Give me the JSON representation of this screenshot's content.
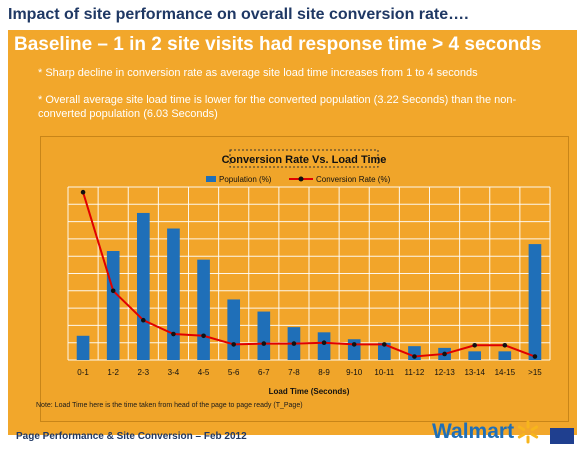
{
  "page": {
    "title": "Impact of site performance on overall site conversion rate….",
    "headline": "Baseline – 1 in 2 site visits had response time > 4 seconds",
    "bullets": [
      "* Sharp decline in conversion rate as average site load time increases from 1 to 4 seconds",
      "* Overall average site load time is lower for the converted population (3.22 Seconds) than the non-converted population (6.03 Seconds)"
    ],
    "note": "Note: Load Time here is the time taken from head of the page to page ready (T_Page)",
    "footer": "Page Performance & Site Conversion – Feb 2012",
    "logo": {
      "text": "Walmart",
      "icon": "spark-icon"
    }
  },
  "colors": {
    "orange": "#f2a72b",
    "blue": "#1f6fb8",
    "red": "#e00000",
    "navy": "#1f3864"
  },
  "chart_data": {
    "type": "bar",
    "title": "Conversion Rate Vs. Load Time",
    "xlabel": "Load Time (Seconds)",
    "ylabel": "",
    "categories": [
      "0-1",
      "1-2",
      "2-3",
      "3-4",
      "4-5",
      "5-6",
      "6-7",
      "7-8",
      "8-9",
      "9-10",
      "10-11",
      "11-12",
      "12-13",
      "13-14",
      "14-15",
      ">15"
    ],
    "ylim": [
      0,
      100
    ],
    "grid": true,
    "legend": "top-center",
    "series": [
      {
        "name": "Population (%)",
        "type": "bar",
        "color": "#1f6fb8",
        "values": [
          14,
          63,
          85,
          76,
          58,
          35,
          28,
          19,
          16,
          12,
          10,
          8,
          7,
          5,
          5,
          67
        ]
      },
      {
        "name": "Conversion Rate (%)",
        "type": "line",
        "color": "#e00000",
        "values": [
          97,
          40,
          23,
          15,
          14,
          9,
          9.5,
          9.5,
          10,
          9,
          9,
          2,
          3.5,
          8.5,
          8.5,
          2
        ]
      }
    ]
  }
}
